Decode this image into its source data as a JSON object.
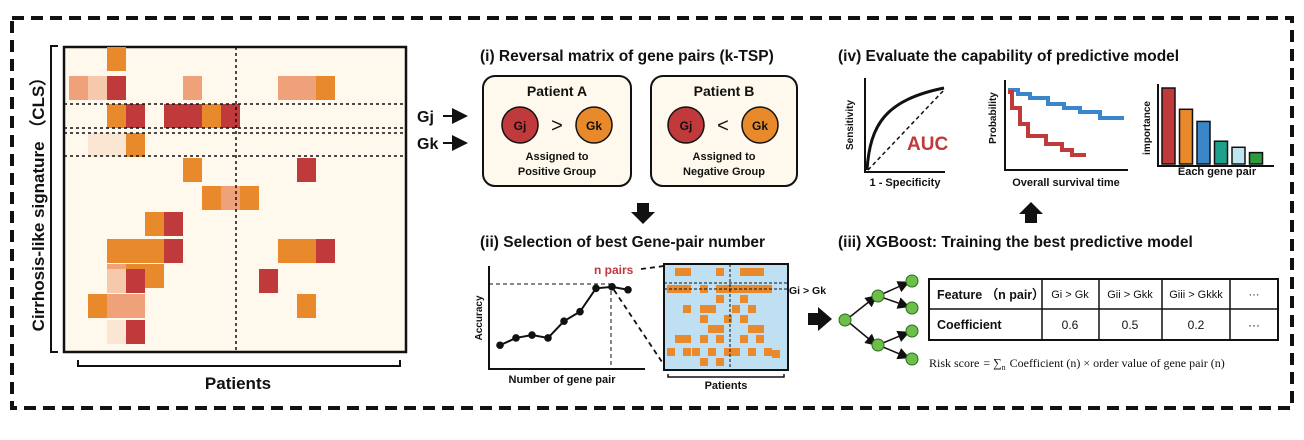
{
  "colors": {
    "orange": "#E8892B",
    "red": "#C0393B",
    "peach": "#EFA27A",
    "light_peach": "#F6C9AB",
    "pale": "#FBE6D3",
    "matrix_bg": "#FEF9EC",
    "blue_bg": "#BFE0F3",
    "blue_line": "#3A86C8",
    "green": "#6CC04A",
    "teal": "#1FA08C",
    "light_blue": "#BFE6F0",
    "dark_green": "#2E9B3E"
  },
  "left": {
    "y_label": "Cirrhosis-like signature （CLS）",
    "x_label": "Patients",
    "gene_labels": [
      "Gj",
      "Gk"
    ]
  },
  "panel_i": {
    "title": "(i) Reversal matrix of gene pairs (k-TSP)",
    "patient_a": {
      "title": "Patient A",
      "gene1": "Gj",
      "op": ">",
      "gene2": "Gk",
      "caption": [
        "Assigned to",
        "Positive Group"
      ]
    },
    "patient_b": {
      "title": "Patient B",
      "gene1": "Gj",
      "op": "<",
      "gene2": "Gk",
      "caption": [
        "Assigned to",
        "Negative Group"
      ]
    }
  },
  "panel_ii": {
    "title": "(ii) Selection of best Gene-pair number",
    "ylabel": "Accuracy",
    "xlabel": "Number of gene pair",
    "n_pairs_label": "n pairs",
    "matrix_label": "Patients",
    "pair_label": "Gi > Gk"
  },
  "panel_iii": {
    "title": "(iii) XGBoost: Training the best predictive model",
    "table": {
      "header": [
        "Feature （n pair）",
        "Gi > Gk",
        "Gii > Gkk",
        "Giii > Gkkk",
        "···"
      ],
      "row": [
        "Coefficient",
        "0.6",
        "0.5",
        "0.2",
        "···"
      ]
    },
    "risk_formula": [
      "Risk score",
      "= ∑",
      "n",
      "Coefficient (n) × order value of gene pair (n)"
    ]
  },
  "panel_iv": {
    "title": "(iv) Evaluate the capability of predictive model",
    "roc": {
      "ylabel": "Sensitivity",
      "xlabel": "1 - Specificity",
      "label": "AUC"
    },
    "km": {
      "ylabel": "Probability",
      "xlabel": "Overall survival time"
    },
    "importance": {
      "ylabel": "importance",
      "xlabel": "Each gene pair",
      "values": [
        1.0,
        0.72,
        0.56,
        0.3,
        0.22,
        0.15
      ]
    }
  },
  "chart_data": [
    {
      "type": "line",
      "title": "(ii) Selection of best Gene-pair number",
      "xlabel": "Number of gene pair",
      "ylabel": "Accuracy",
      "x": [
        1,
        2,
        3,
        4,
        5,
        6,
        7,
        8,
        9
      ],
      "values": [
        0.12,
        0.22,
        0.26,
        0.22,
        0.45,
        0.58,
        0.9,
        0.92,
        0.88
      ],
      "ylim": [
        0,
        1
      ],
      "annotation": "n pairs"
    },
    {
      "type": "bar",
      "title": "",
      "xlabel": "Each gene pair",
      "ylabel": "importance",
      "values": [
        1.0,
        0.72,
        0.56,
        0.3,
        0.22,
        0.15
      ],
      "ylim": [
        0,
        1
      ]
    }
  ]
}
